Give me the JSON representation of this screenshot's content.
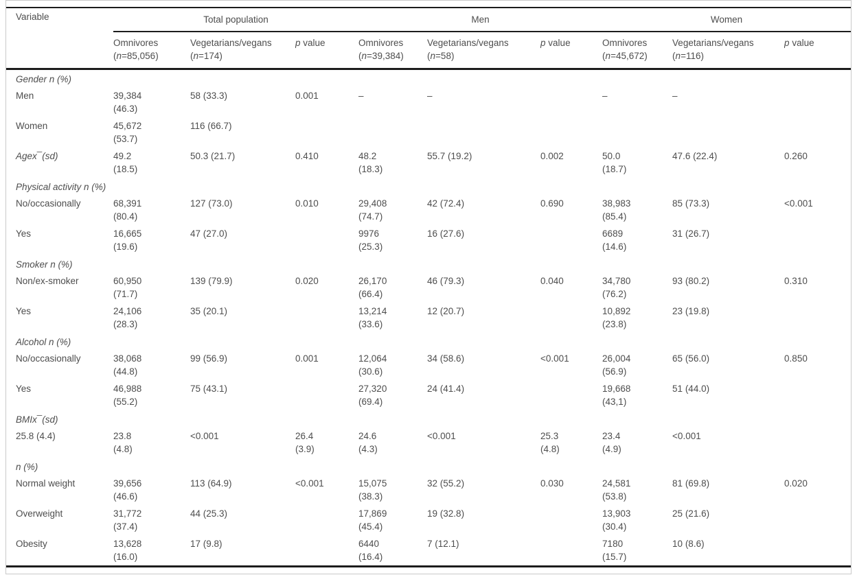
{
  "colors": {
    "text": "#4d4d4d",
    "rule": "#1c1c1c",
    "figure_border": "#c9c9c9"
  },
  "table": {
    "variable_label": "Variable",
    "groups": [
      {
        "label": "Total population",
        "columns": [
          {
            "label": "Omnivores",
            "n": "(n=85,056)"
          },
          {
            "label": "Vegetarians/vegans",
            "n": "(n=174)"
          },
          {
            "label": "p value"
          }
        ]
      },
      {
        "label": "Men",
        "columns": [
          {
            "label": "Omnivores",
            "n": "(n=39,384)"
          },
          {
            "label": "Vegetarians/vegans",
            "n": "(n=58)"
          },
          {
            "label": "p value"
          }
        ]
      },
      {
        "label": "Women",
        "columns": [
          {
            "label": "Omnivores",
            "n": "(n=45,672)"
          },
          {
            "label": "Vegetarians/vegans",
            "n": "(n=116)"
          },
          {
            "label": "p value"
          }
        ]
      }
    ],
    "rows": [
      {
        "type": "section",
        "label": "Gender n (%)"
      },
      {
        "label": "Men",
        "cells": [
          "39,384\n(46.3)",
          "58 (33.3)",
          "0.001",
          "–",
          "–",
          "",
          "–",
          "–",
          ""
        ]
      },
      {
        "label": "Women",
        "cells": [
          "45,672\n(53.7)",
          "116 (66.7)",
          "",
          "",
          "",
          "",
          "",
          "",
          ""
        ]
      },
      {
        "label": "Agex¯(sd)",
        "label_italic": true,
        "cells": [
          "49.2\n(18.5)",
          "50.3 (21.7)",
          "0.410",
          "48.2\n(18.3)",
          "55.7 (19.2)",
          "0.002",
          "50.0\n(18.7)",
          "47.6 (22.4)",
          "0.260"
        ]
      },
      {
        "type": "section",
        "label": "Physical activity n (%)"
      },
      {
        "label": "No/occasionally",
        "cells": [
          "68,391\n(80.4)",
          "127 (73.0)",
          "0.010",
          "29,408\n(74.7)",
          "42 (72.4)",
          "0.690",
          "38,983\n(85.4)",
          "85 (73.3)",
          "<0.001"
        ]
      },
      {
        "label": "Yes",
        "cells": [
          "16,665\n(19.6)",
          "47 (27.0)",
          "",
          "9976\n(25.3)",
          "16 (27.6)",
          "",
          "6689\n(14.6)",
          "31 (26.7)",
          ""
        ]
      },
      {
        "type": "section",
        "label": "Smoker n (%)"
      },
      {
        "label": "Non/ex-smoker",
        "cells": [
          "60,950\n(71.7)",
          "139 (79.9)",
          "0.020",
          "26,170\n(66.4)",
          "46 (79.3)",
          "0.040",
          "34,780\n(76.2)",
          "93 (80.2)",
          "0.310"
        ]
      },
      {
        "label": "Yes",
        "cells": [
          "24,106\n(28.3)",
          "35 (20.1)",
          "",
          "13,214\n(33.6)",
          "12 (20.7)",
          "",
          "10,892\n(23.8)",
          "23 (19.8)",
          ""
        ]
      },
      {
        "type": "section",
        "label": "Alcohol n (%)"
      },
      {
        "label": "No/occasionally",
        "cells": [
          "38,068\n(44.8)",
          "99 (56.9)",
          "0.001",
          "12,064\n(30.6)",
          "34 (58.6)",
          "<0.001",
          "26,004\n(56.9)",
          "65 (56.0)",
          "0.850"
        ]
      },
      {
        "label": "Yes",
        "cells": [
          "46,988\n(55.2)",
          "75 (43.1)",
          "",
          "27,320\n(69.4)",
          "24 (41.4)",
          "",
          "19,668\n(43,1)",
          "51 (44.0)",
          ""
        ]
      },
      {
        "type": "section",
        "label": "BMIx¯(sd)"
      },
      {
        "label": "25.8 (4.4)",
        "cells": [
          "23.8\n(4.8)",
          "<0.001",
          "26.4\n(3.9)",
          "24.6\n(4.3)",
          "<0.001",
          "25.3\n(4.8)",
          "23.4\n(4.9)",
          "<0.001",
          ""
        ]
      },
      {
        "type": "section",
        "label": "n (%)"
      },
      {
        "label": "Normal weight",
        "cells": [
          "39,656\n(46.6)",
          "113 (64.9)",
          "<0.001",
          "15,075\n(38.3)",
          "32 (55.2)",
          "0.030",
          "24,581\n(53.8)",
          "81 (69.8)",
          "0.020"
        ]
      },
      {
        "label": "Overweight",
        "cells": [
          "31,772\n(37.4)",
          "44 (25.3)",
          "",
          "17,869\n(45.4)",
          "19 (32.8)",
          "",
          "13,903\n(30.4)",
          "25 (21.6)",
          ""
        ]
      },
      {
        "label": "Obesity",
        "cells": [
          "13,628\n(16.0)",
          "17 (9.8)",
          "",
          "6440\n(16.4)",
          "7 (12.1)",
          "",
          "7180\n(15.7)",
          "10 (8.6)",
          ""
        ]
      }
    ]
  }
}
